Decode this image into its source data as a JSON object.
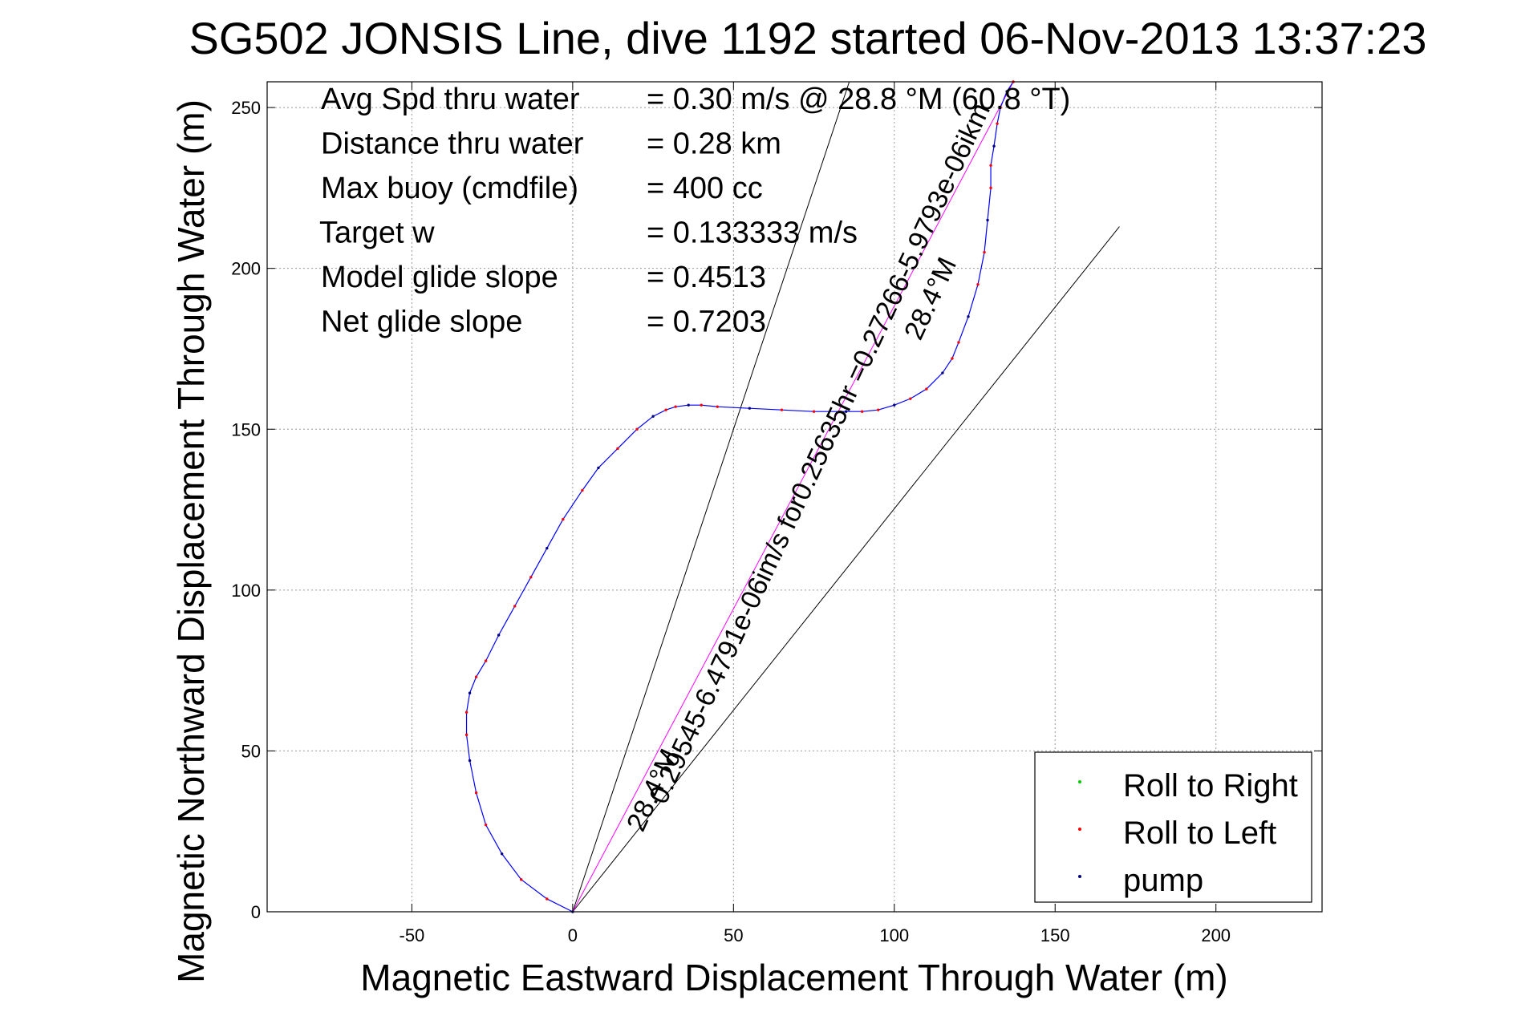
{
  "chart_data": {
    "type": "line",
    "title": "SG502 JONSIS Line, dive 1192 started 06-Nov-2013 13:37:23",
    "xlabel": "Magnetic Eastward Displacement Through Water (m)",
    "ylabel": "Magnetic Northward Displacement Through Water (m)",
    "xlim": [
      -95,
      233
    ],
    "ylim": [
      0,
      258
    ],
    "xticks": [
      -50,
      0,
      50,
      100,
      150,
      200
    ],
    "yticks": [
      0,
      50,
      100,
      150,
      200,
      250
    ],
    "grid": true,
    "legend_position": "bottom-right",
    "stats": [
      {
        "label": "Avg Spd thru water",
        "value": "=  0.30 m/s @  28.8 °M (60.8 °T)"
      },
      {
        "label": "Distance thru water",
        "value": "=  0.28 km"
      },
      {
        "label": "Max buoy (cmdfile)",
        "value": "= 400 cc"
      },
      {
        "label": "Target w",
        "value": "= 0.133333 m/s"
      },
      {
        "label": "Model glide slope",
        "value": "= 0.4513"
      },
      {
        "label": "Net glide slope",
        "value": "= 0.7203"
      }
    ],
    "legend": [
      {
        "name": "Roll to Right",
        "color": "#00cc00"
      },
      {
        "name": "Roll to Left",
        "color": "#ff0000"
      },
      {
        "name": "pump",
        "color": "#000080"
      }
    ],
    "annotations": {
      "drift_line": "0.29545-6.4791e-06im/s for0.25635hr =0.27266-5.9793e-06ikm",
      "heading_top": "28.4°M",
      "heading_bottom": "28.4°M"
    },
    "series": [
      {
        "color": "#0000ff",
        "x": [
          0,
          -8,
          -16,
          -22,
          -27,
          -30,
          -32,
          -33,
          -33,
          -32,
          -30,
          -27,
          -23,
          -18,
          -13,
          -8,
          -3,
          3,
          8,
          14,
          20,
          25,
          29,
          32,
          36,
          40,
          45,
          55,
          65,
          75,
          85,
          90,
          95,
          100,
          105,
          110,
          115,
          118,
          120,
          123,
          126,
          128,
          129,
          130,
          130,
          131,
          132,
          133,
          135,
          137
        ],
        "y": [
          0,
          4,
          10,
          18,
          27,
          37,
          47,
          55,
          62,
          68,
          73,
          78,
          86,
          95,
          104,
          113,
          122,
          131,
          138,
          144,
          150,
          154,
          156,
          157,
          157.5,
          157.5,
          157,
          156.5,
          156,
          155.5,
          155.5,
          155.5,
          156,
          157.5,
          159.5,
          162.5,
          167.5,
          172,
          177,
          185,
          195,
          205,
          215,
          225,
          232,
          238,
          245,
          250,
          255,
          258
        ]
      }
    ],
    "model_lines": [
      {
        "x": [
          0,
          86
        ],
        "y": [
          0,
          258
        ]
      },
      {
        "x": [
          0,
          170
        ],
        "y": [
          0,
          213
        ]
      },
      {
        "color": "#ff00ff",
        "x": [
          0,
          137
        ],
        "y": [
          0,
          258
        ]
      }
    ]
  }
}
